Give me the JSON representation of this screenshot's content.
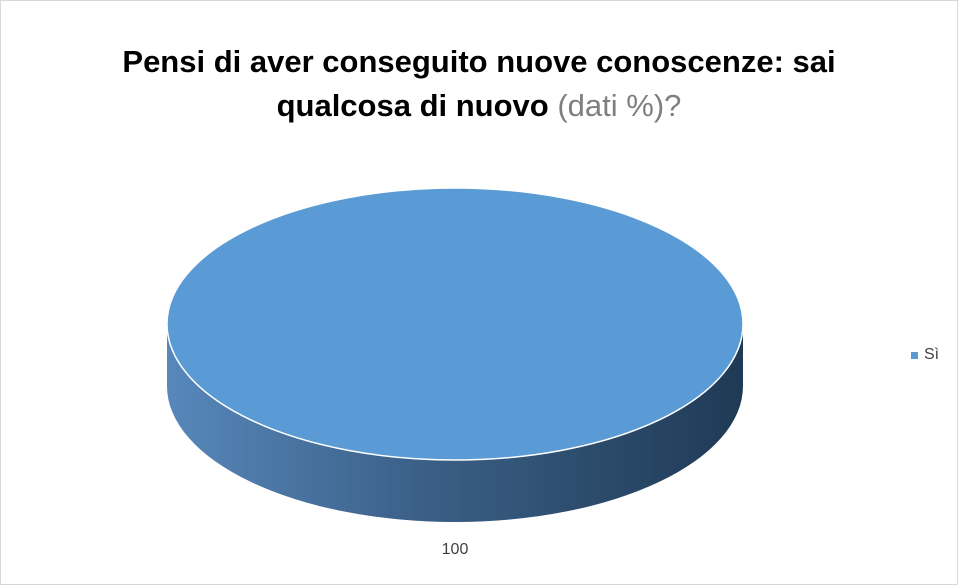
{
  "chart_data": {
    "type": "pie",
    "title_bold_line1": "Pensi di aver conseguito nuove conoscenze: sai",
    "title_bold_line2": "qualcosa di nuovo",
    "title_light": " (dati %)?",
    "categories": [
      "Sì"
    ],
    "values": [
      100
    ],
    "colors": [
      "#5b9bd5"
    ],
    "legend_position": "right",
    "data_labels": [
      "100"
    ]
  }
}
